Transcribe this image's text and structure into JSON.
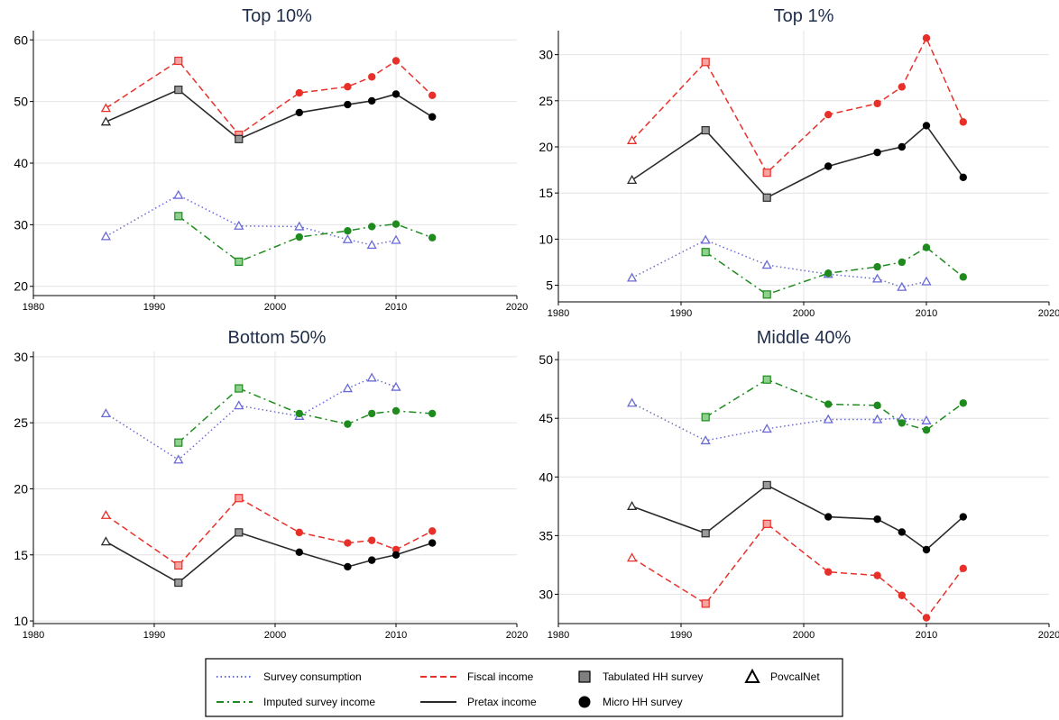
{
  "chart_data": [
    {
      "type": "line",
      "title": "Top 10%",
      "xlim": [
        1980,
        2020
      ],
      "xticks": [
        1980,
        1990,
        2000,
        2010,
        2020
      ],
      "ylim": [
        18.5,
        61.5
      ],
      "yticks": [
        20,
        30,
        40,
        50,
        60
      ],
      "grid": true,
      "series": [
        {
          "name": "Survey consumption",
          "style": "dotted",
          "color": "#6a6ad6",
          "points": [
            [
              1986,
              28.1
            ],
            [
              1992,
              34.8
            ],
            [
              1997,
              29.8
            ],
            [
              2002,
              29.7
            ],
            [
              2006,
              27.6
            ],
            [
              2008,
              26.7
            ],
            [
              2010,
              27.5
            ]
          ]
        },
        {
          "name": "Imputed survey income",
          "style": "dashdot",
          "color": "#1f8b1f",
          "points": [
            [
              1992,
              31.4
            ],
            [
              1997,
              24.0
            ],
            [
              2002,
              28.0
            ],
            [
              2006,
              29.0
            ],
            [
              2008,
              29.7
            ],
            [
              2010,
              30.1
            ],
            [
              2013,
              27.9
            ]
          ]
        },
        {
          "name": "Fiscal income",
          "style": "dashed",
          "color": "#e8302a",
          "points": [
            [
              1986,
              48.9
            ],
            [
              1992,
              56.6
            ],
            [
              1997,
              44.6
            ],
            [
              2002,
              51.4
            ],
            [
              2006,
              52.4
            ],
            [
              2008,
              54.0
            ],
            [
              2010,
              56.6
            ],
            [
              2013,
              51.0
            ]
          ]
        },
        {
          "name": "Pretax income",
          "style": "solid",
          "color": "#2a2a2a",
          "points": [
            [
              1986,
              46.7
            ],
            [
              1992,
              51.9
            ],
            [
              1997,
              43.9
            ],
            [
              2002,
              48.2
            ],
            [
              2006,
              49.5
            ],
            [
              2008,
              50.1
            ],
            [
              2010,
              51.2
            ],
            [
              2013,
              47.5
            ]
          ]
        }
      ]
    },
    {
      "type": "line",
      "title": "Top 1%",
      "xlim": [
        1980,
        2020
      ],
      "xticks": [
        1980,
        1990,
        2000,
        2010,
        2020
      ],
      "ylim": [
        3.2,
        32.6
      ],
      "yticks": [
        5,
        10,
        15,
        20,
        25,
        30
      ],
      "grid": true,
      "series": [
        {
          "name": "Survey consumption",
          "style": "dotted",
          "color": "#6a6ad6",
          "points": [
            [
              1986,
              5.8
            ],
            [
              1992,
              9.9
            ],
            [
              1997,
              7.2
            ],
            [
              2002,
              6.2
            ],
            [
              2006,
              5.7
            ],
            [
              2008,
              4.8
            ],
            [
              2010,
              5.4
            ]
          ]
        },
        {
          "name": "Imputed survey income",
          "style": "dashdot",
          "color": "#1f8b1f",
          "points": [
            [
              1992,
              8.6
            ],
            [
              1997,
              4.0
            ],
            [
              2002,
              6.3
            ],
            [
              2006,
              7.0
            ],
            [
              2008,
              7.5
            ],
            [
              2010,
              9.1
            ],
            [
              2013,
              5.9
            ]
          ]
        },
        {
          "name": "Fiscal income",
          "style": "dashed",
          "color": "#e8302a",
          "points": [
            [
              1986,
              20.7
            ],
            [
              1992,
              29.2
            ],
            [
              1997,
              17.2
            ],
            [
              2002,
              23.5
            ],
            [
              2006,
              24.7
            ],
            [
              2008,
              26.5
            ],
            [
              2010,
              31.8
            ],
            [
              2013,
              22.7
            ]
          ]
        },
        {
          "name": "Pretax income",
          "style": "solid",
          "color": "#2a2a2a",
          "points": [
            [
              1986,
              16.4
            ],
            [
              1992,
              21.8
            ],
            [
              1997,
              14.5
            ],
            [
              2002,
              17.9
            ],
            [
              2006,
              19.4
            ],
            [
              2008,
              20.0
            ],
            [
              2010,
              22.3
            ],
            [
              2013,
              16.7
            ]
          ]
        }
      ]
    },
    {
      "type": "line",
      "title": "Bottom 50%",
      "xlim": [
        1980,
        2020
      ],
      "xticks": [
        1980,
        1990,
        2000,
        2010,
        2020
      ],
      "ylim": [
        9.8,
        30.4
      ],
      "yticks": [
        10,
        15,
        20,
        25,
        30
      ],
      "grid": true,
      "series": [
        {
          "name": "Survey consumption",
          "style": "dotted",
          "color": "#6a6ad6",
          "points": [
            [
              1986,
              25.7
            ],
            [
              1992,
              22.2
            ],
            [
              1997,
              26.3
            ],
            [
              2002,
              25.5
            ],
            [
              2006,
              27.6
            ],
            [
              2008,
              28.4
            ],
            [
              2010,
              27.7
            ]
          ]
        },
        {
          "name": "Imputed survey income",
          "style": "dashdot",
          "color": "#1f8b1f",
          "points": [
            [
              1992,
              23.5
            ],
            [
              1997,
              27.6
            ],
            [
              2002,
              25.7
            ],
            [
              2006,
              24.9
            ],
            [
              2008,
              25.7
            ],
            [
              2010,
              25.9
            ],
            [
              2013,
              25.7
            ]
          ]
        },
        {
          "name": "Fiscal income",
          "style": "dashed",
          "color": "#e8302a",
          "points": [
            [
              1986,
              18.0
            ],
            [
              1992,
              14.2
            ],
            [
              1997,
              19.3
            ],
            [
              2002,
              16.7
            ],
            [
              2006,
              15.9
            ],
            [
              2008,
              16.1
            ],
            [
              2010,
              15.4
            ],
            [
              2013,
              16.8
            ]
          ]
        },
        {
          "name": "Pretax income",
          "style": "solid",
          "color": "#2a2a2a",
          "points": [
            [
              1986,
              16.0
            ],
            [
              1992,
              12.9
            ],
            [
              1997,
              16.7
            ],
            [
              2002,
              15.2
            ],
            [
              2006,
              14.1
            ],
            [
              2008,
              14.6
            ],
            [
              2010,
              15.0
            ],
            [
              2013,
              15.9
            ]
          ]
        }
      ]
    },
    {
      "type": "line",
      "title": "Middle 40%",
      "xlim": [
        1980,
        2020
      ],
      "xticks": [
        1980,
        1990,
        2000,
        2010,
        2020
      ],
      "ylim": [
        27.5,
        50.7
      ],
      "yticks": [
        30,
        35,
        40,
        45,
        50
      ],
      "grid": true,
      "series": [
        {
          "name": "Survey consumption",
          "style": "dotted",
          "color": "#6a6ad6",
          "points": [
            [
              1986,
              46.3
            ],
            [
              1992,
              43.1
            ],
            [
              1997,
              44.1
            ],
            [
              2002,
              44.9
            ],
            [
              2006,
              44.9
            ],
            [
              2008,
              45.0
            ],
            [
              2010,
              44.8
            ]
          ]
        },
        {
          "name": "Imputed survey income",
          "style": "dashdot",
          "color": "#1f8b1f",
          "points": [
            [
              1992,
              45.1
            ],
            [
              1997,
              48.3
            ],
            [
              2002,
              46.2
            ],
            [
              2006,
              46.1
            ],
            [
              2008,
              44.6
            ],
            [
              2010,
              44.0
            ],
            [
              2013,
              46.3
            ]
          ]
        },
        {
          "name": "Fiscal income",
          "style": "dashed",
          "color": "#e8302a",
          "points": [
            [
              1986,
              33.1
            ],
            [
              1992,
              29.2
            ],
            [
              1997,
              36.0
            ],
            [
              2002,
              31.9
            ],
            [
              2006,
              31.6
            ],
            [
              2008,
              29.9
            ],
            [
              2010,
              28.0
            ],
            [
              2013,
              32.2
            ]
          ]
        },
        {
          "name": "Pretax income",
          "style": "solid",
          "color": "#2a2a2a",
          "points": [
            [
              1986,
              37.5
            ],
            [
              1992,
              35.2
            ],
            [
              1997,
              39.3
            ],
            [
              2002,
              36.6
            ],
            [
              2006,
              36.4
            ],
            [
              2008,
              35.3
            ],
            [
              2010,
              33.8
            ],
            [
              2013,
              36.6
            ]
          ]
        }
      ]
    }
  ],
  "marker_source": {
    "PovcalNet": [
      1986,
      1992,
      1997,
      2002,
      2006,
      2008,
      2010
    ],
    "Tabulated HH survey": [
      1992,
      1997
    ],
    "Micro HH survey": [
      2002,
      2006,
      2008,
      2010,
      2013
    ]
  },
  "pretax_special": {
    "PovcalNet": [
      1986
    ],
    "Tabulated HH survey": [
      1992,
      1997
    ]
  },
  "legend": {
    "position": "bottom",
    "items": [
      {
        "label": "Survey consumption",
        "kind": "line",
        "style": "dotted",
        "color": "#6a6ad6"
      },
      {
        "label": "Fiscal income",
        "kind": "line",
        "style": "dashed",
        "color": "#e8302a"
      },
      {
        "label": "Tabulated HH survey",
        "kind": "marker",
        "marker": "square"
      },
      {
        "label": "PovcalNet",
        "kind": "marker",
        "marker": "triangle"
      },
      {
        "label": "Imputed survey income",
        "kind": "line",
        "style": "dashdot",
        "color": "#1f8b1f"
      },
      {
        "label": "Pretax income",
        "kind": "line",
        "style": "solid",
        "color": "#2a2a2a"
      },
      {
        "label": "Micro HH survey",
        "kind": "marker",
        "marker": "circle"
      }
    ]
  }
}
